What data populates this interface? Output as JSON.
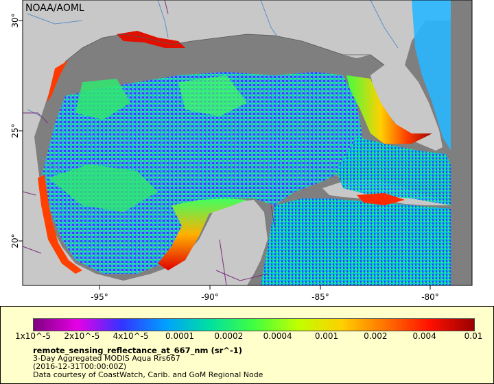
{
  "credit": "NOAA/AOML",
  "colors": {
    "land": "#c8c8c8",
    "no_data": "#7f7f7f",
    "legend_bg": "#ffffcc",
    "border_lines": "#7a2b7a",
    "rivers": "#5b8fc7"
  },
  "axes": {
    "x_ticks": [
      "-95°",
      "-90°",
      "-85°",
      "-80°"
    ],
    "y_ticks": [
      "30°",
      "25°",
      "20°"
    ]
  },
  "legend": {
    "colorbar_colors": [
      "#7f007f",
      "#e600e6",
      "#3333ff",
      "#00a0ff",
      "#00e0a0",
      "#40ff40",
      "#c0ff00",
      "#ffd000",
      "#ff7000",
      "#ff1000",
      "#9a0000"
    ],
    "labels": [
      "1x10^-5",
      "2x10^-5",
      "4x10^-5",
      "0.0001",
      "0.0002",
      "0.0004",
      "0.001",
      "0.002",
      "0.004",
      "0.01"
    ],
    "variable": "remote_sensing_reflectance_at_667_nm (sr^-1)",
    "title": "3-Day Aggregated MODIS Aqua Rrs667",
    "time": "(2016-12-31T00:00:00Z)",
    "courtesy": "Data courtesy of CoastWatch, Carib. and GoM Regional Node"
  }
}
